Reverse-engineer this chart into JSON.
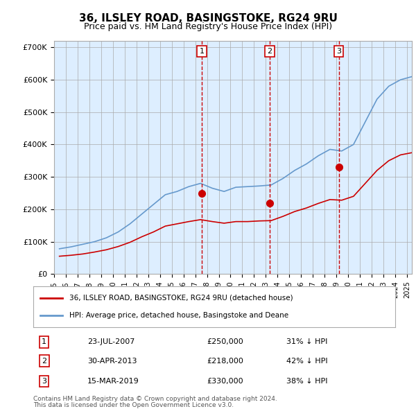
{
  "title": "36, ILSLEY ROAD, BASINGSTOKE, RG24 9RU",
  "subtitle": "Price paid vs. HM Land Registry's House Price Index (HPI)",
  "hpi_color": "#6699cc",
  "price_color": "#cc0000",
  "background_color": "#ddeeff",
  "plot_bg": "#ffffff",
  "ylim": [
    0,
    720000
  ],
  "yticks": [
    0,
    100000,
    200000,
    300000,
    400000,
    500000,
    600000,
    700000
  ],
  "ytick_labels": [
    "£0",
    "£100K",
    "£200K",
    "£300K",
    "£400K",
    "£500K",
    "£600K",
    "£700K"
  ],
  "sale_dates": [
    "2007-07-23",
    "2013-04-30",
    "2019-03-15"
  ],
  "sale_prices": [
    250000,
    218000,
    330000
  ],
  "sale_labels": [
    "1",
    "2",
    "3"
  ],
  "sale_notes": [
    "23-JUL-2007",
    "30-APR-2013",
    "15-MAR-2019"
  ],
  "sale_amounts": [
    "£250,000",
    "£218,000",
    "£330,000"
  ],
  "sale_pcts": [
    "31% ↓ HPI",
    "42% ↓ HPI",
    "38% ↓ HPI"
  ],
  "legend_line1": "36, ILSLEY ROAD, BASINGSTOKE, RG24 9RU (detached house)",
  "legend_line2": "HPI: Average price, detached house, Basingstoke and Deane",
  "footer1": "Contains HM Land Registry data © Crown copyright and database right 2024.",
  "footer2": "This data is licensed under the Open Government Licence v3.0.",
  "hpi_years": [
    1995,
    1996,
    1997,
    1998,
    1999,
    2000,
    2001,
    2002,
    2003,
    2004,
    2005,
    2006,
    2007,
    2008,
    2009,
    2010,
    2011,
    2012,
    2013,
    2014,
    2015,
    2016,
    2017,
    2018,
    2019,
    2020,
    2021,
    2022,
    2023,
    2024,
    2025
  ],
  "hpi_values": [
    78000,
    84000,
    92000,
    100000,
    112000,
    130000,
    155000,
    185000,
    215000,
    245000,
    255000,
    270000,
    280000,
    265000,
    255000,
    268000,
    270000,
    272000,
    275000,
    295000,
    320000,
    340000,
    365000,
    385000,
    380000,
    400000,
    470000,
    540000,
    580000,
    600000,
    610000
  ],
  "price_hpi_years": [
    1995,
    1996,
    1997,
    1998,
    1999,
    2000,
    2001,
    2002,
    2003,
    2004,
    2005,
    2006,
    2007,
    2008,
    2009,
    2010,
    2011,
    2012,
    2013,
    2014,
    2015,
    2016,
    2017,
    2018,
    2019,
    2020,
    2021,
    2022,
    2023,
    2024,
    2025
  ],
  "price_hpi_values": [
    55000,
    58000,
    62000,
    68000,
    75000,
    85000,
    98000,
    115000,
    130000,
    148000,
    155000,
    162000,
    168000,
    162000,
    157000,
    162000,
    162000,
    164000,
    165000,
    178000,
    193000,
    204000,
    218000,
    230000,
    228000,
    240000,
    280000,
    320000,
    350000,
    368000,
    375000
  ]
}
